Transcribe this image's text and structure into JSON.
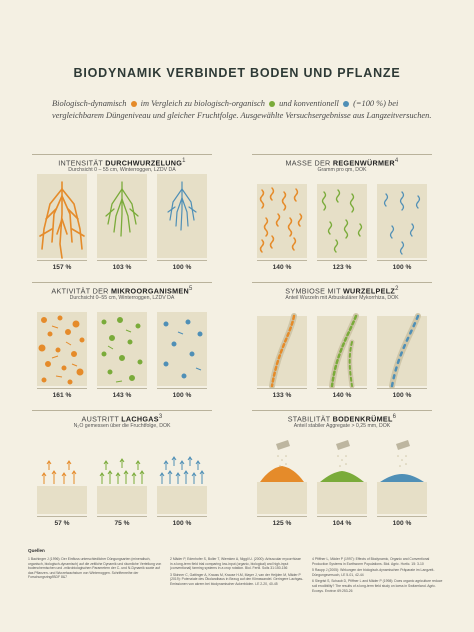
{
  "title": "BIODYNAMIK VERBINDET BODEN UND PFLANZE",
  "intro": {
    "bio_dyn": "Biologisch-dynamisch",
    "part1": " im Vergleich zu ",
    "bio_org": "biologisch-organisch",
    "part2": " und ",
    "konv": "konventionell",
    "part3": " (=100 %) bei vergleichbarem Düngeniveau und gleicher Fruchtfolge. Ausgewählte Versuchsergebnisse aus Langzeitversuchen.",
    "colors": {
      "biodynamisch": "#e58b2a",
      "organisch": "#7aab3a",
      "konventionell": "#4f8fb6"
    }
  },
  "panels": {
    "durchwurzelung": {
      "label": "INTENSITÄT ",
      "bold": "DURCHWURZELUNG",
      "sup": "1",
      "sub": "Durchsicht 0 – 55 cm, Winterroggen, LZDV DA",
      "values": [
        "157 %",
        "103 %",
        "100 %"
      ]
    },
    "regenwuermer": {
      "label": "MASSE DER ",
      "bold": "REGENWÜRMER",
      "sup": "4",
      "sub": "Gramm pro qm, DOK",
      "values": [
        "140 %",
        "123 %",
        "100 %"
      ]
    },
    "mikroorganismen": {
      "label": "AKTIVITÄT DER ",
      "bold": "MIKROORGANISMEN",
      "sup": "5",
      "sub": "Durchsicht 0–55 cm, Winterroggen, LZDV DA",
      "values": [
        "161 %",
        "143 %",
        "100 %"
      ]
    },
    "wurzelpelz": {
      "label": "SYMBIOSE MIT ",
      "bold": "WURZELPELZ",
      "sup": "2",
      "sub": "Anteil Wurzeln mit Arbuskulärer Mykorrhiza, DOK",
      "values": [
        "133 %",
        "140 %",
        "100 %"
      ]
    },
    "lachgas": {
      "label": "AUSTRITT ",
      "bold": "LACHGAS",
      "sup": "3",
      "sub": "N₂O gemessen über die Fruchtfolge, DOK",
      "values": [
        "57 %",
        "75 %",
        "100 %"
      ]
    },
    "bodenkruemel": {
      "label": "STABILITÄT ",
      "bold": "BODENKRÜMEL",
      "sup": "6",
      "sub": "Anteil stabiler Aggregate > 0,25 mm, DOK",
      "values": [
        "125 %",
        "104 %",
        "100 %"
      ]
    }
  },
  "refs": {
    "heading": "Quellen",
    "col1": [
      "1 Bachinger J (1996): Der Einfluss unterschiedlicher Düngungsarten (mineralisch, organisch, biologisch-dynamisch) auf die zeitliche Dynamik und räumliche Verteilung von bodenchemischen und -mikrobiologischen Parametern der C- und N-Dynamik sowie auf das Pflanzen- und Wurzelwachstum von Winterroggen. Schriftenreihe der Forschungsring/IBDF 8&7"
    ],
    "col2": [
      "2 Mäder P, Edenhofer S, Boller T, Wiemken A, Niggli U. (2000): Arbuscular mycorrhizae in a long-term field trial comparing low-input (organic, biological) and high-input (conventional) farming systems in a crop rotation. Biol. Fertil. Soils 31:150-156",
      "3 Skinner C, Gattinger A, Krauss M, Krause H-M, Mayer J, van der Heijden M, Mäder P (2019): Potenziale des Ökolandbaus in Bezug auf den Klimawandel. Geringere Lachgas-Emissionen von akrem bei biodynamischer Ackerböden. LE 2-20, 40-45"
    ],
    "col3": [
      "4 Pfiffner L, Mäder P (1997): Effects of Biodynamic, Organic and Conventional Production Systems in Earthworm Populations. Biol. Agric. Hortic. 15: 3-10",
      "5 Raupp J (2005): Wirkungen der biologisch-dynamischen Präparate im Langzeit-Düngungsversuch, LE 5-01, 42-44",
      "6 Siegrist S, Schaub D, Pfiffner L and Mäder P (1998): Does organic agriculture reduce soil erodibility? The results of a long-term field study on loess in Switzerland. Agric. Ecosys. Environ 69:253-26"
    ]
  }
}
